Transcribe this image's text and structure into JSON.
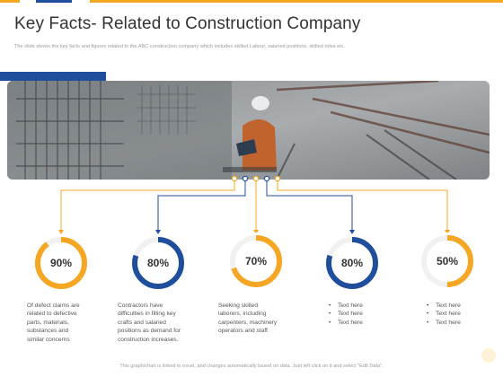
{
  "header": {
    "title": "Key Facts- Related to Construction Company",
    "subtitle": "The slide shows the key facts and figures related to the ABC construction company which includes skilled Labour, salaried positions, skilled roles etc."
  },
  "colors": {
    "orange": "#f5a623",
    "blue": "#1f4e9c",
    "track": "#f1f1f1"
  },
  "facts": [
    {
      "percent": 90,
      "label": "90%",
      "color": "orange",
      "description": [
        "Of defect claims are",
        "related to defective",
        "parts, materials,",
        "substances and",
        "similar concerns"
      ]
    },
    {
      "percent": 80,
      "label": "80%",
      "color": "blue",
      "description": [
        "Contractors have",
        "difficulties in filling key",
        "crafts and salaried",
        "positions as demand for",
        "construction increases."
      ]
    },
    {
      "percent": 70,
      "label": "70%",
      "color": "orange",
      "description": [
        "Seeking skilled",
        "laborers, including",
        "carpenters, machinery",
        "operators and staff."
      ]
    },
    {
      "percent": 80,
      "label": "80%",
      "color": "blue",
      "bullets": [
        "Text here",
        "Text here",
        "Text here"
      ]
    },
    {
      "percent": 50,
      "label": "50%",
      "color": "orange",
      "bullets": [
        "Text here",
        "Text here",
        "Text here"
      ]
    }
  ],
  "footer": {
    "note": "This graph/chart is linked to excel, and changes automatically based on data. Just left click on it and select \"Edit Data\"."
  }
}
